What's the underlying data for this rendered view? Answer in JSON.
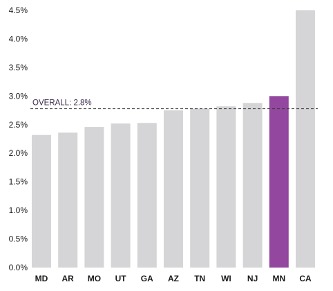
{
  "chart_data": {
    "type": "bar",
    "categories": [
      "MD",
      "AR",
      "MO",
      "UT",
      "GA",
      "AZ",
      "TN",
      "WI",
      "NJ",
      "MN",
      "CA"
    ],
    "values": [
      2.32,
      2.36,
      2.46,
      2.52,
      2.53,
      2.75,
      2.78,
      2.82,
      2.88,
      3.0,
      4.5
    ],
    "highlight": "MN",
    "ylim": [
      0,
      4.5
    ],
    "yticks": [
      "0.0%",
      "0.5%",
      "1.0%",
      "1.5%",
      "2.0%",
      "2.5%",
      "3.0%",
      "3.5%",
      "4.0%",
      "4.5%"
    ],
    "ytick_values": [
      0,
      0.5,
      1.0,
      1.5,
      2.0,
      2.5,
      3.0,
      3.5,
      4.0,
      4.5
    ],
    "reference_line": {
      "value": 2.78,
      "label": "OVERALL: 2.8%"
    },
    "grid": false,
    "colors": {
      "bar": "#d5d4d6",
      "highlight": "#93479f",
      "reference": "#3a3a3a"
    }
  }
}
